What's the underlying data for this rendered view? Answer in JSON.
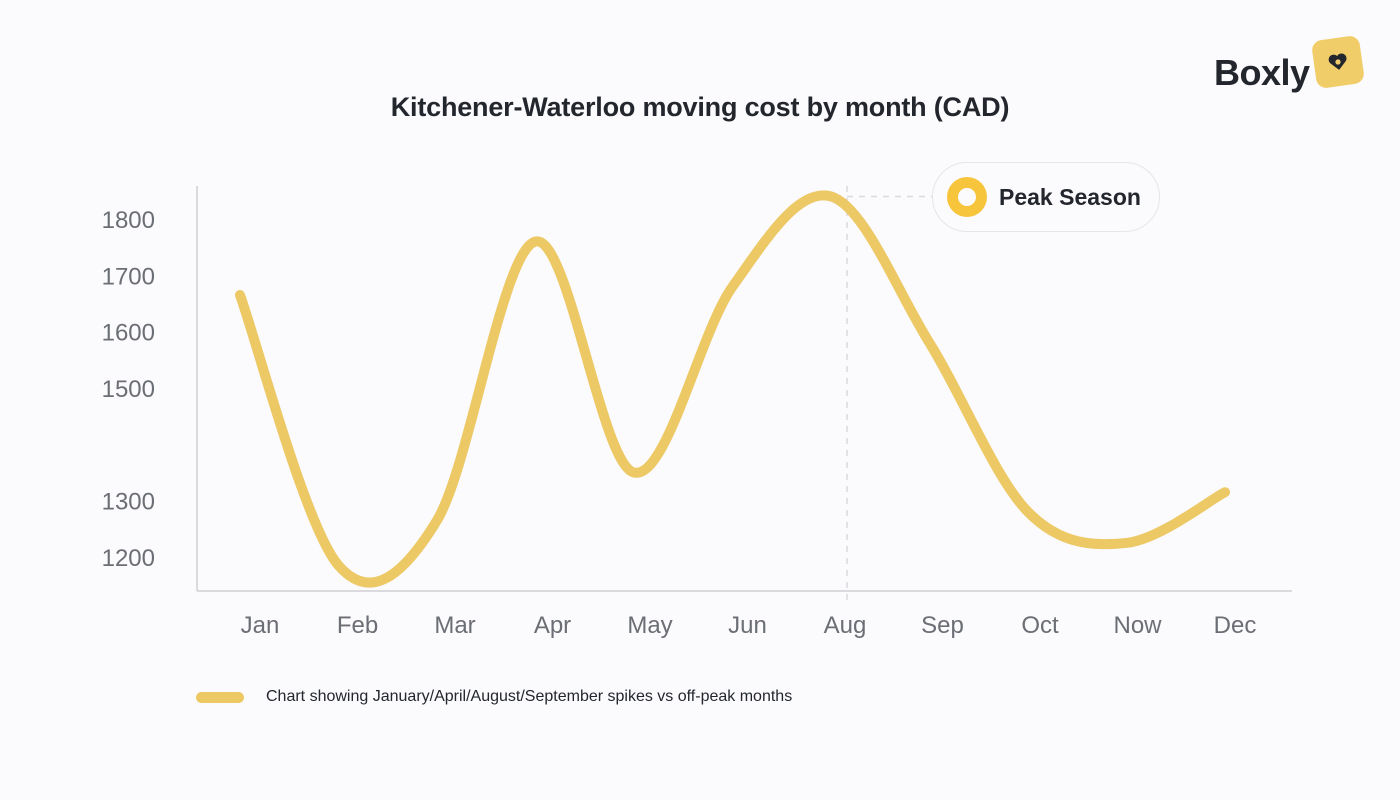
{
  "brand": {
    "name": "Boxly",
    "icon": "heart-tag-icon",
    "accent": "#f1cd6a"
  },
  "chart_data": {
    "type": "line",
    "title": "Kitchener-Waterloo moving cost by month (CAD)",
    "categories": [
      "Jan",
      "Feb",
      "Mar",
      "Apr",
      "May",
      "Jun",
      "Aug",
      "Sep",
      "Oct",
      "Now",
      "Dec"
    ],
    "series": [
      {
        "name": "Chart showing January/April/August/September spikes vs off-peak months",
        "color": "#ecc965",
        "values": [
          1665,
          1185,
          1265,
          1760,
          1350,
          1680,
          1840,
          1580,
          1280,
          1225,
          1315
        ]
      }
    ],
    "yticks": [
      1800,
      1700,
      1600,
      1500,
      1300,
      1200
    ],
    "ylim": [
      1140,
      1850
    ],
    "xlabel": "",
    "ylabel": "",
    "grid": false,
    "legend_position": "bottom-left",
    "annotation": {
      "label": "Peak Season",
      "category": "Aug"
    }
  }
}
